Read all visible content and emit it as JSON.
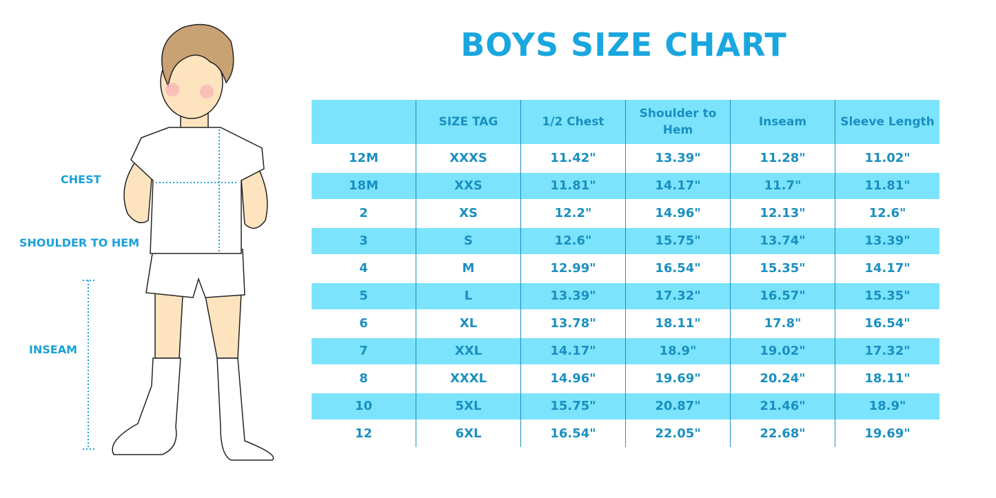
{
  "title": "BOYS SIZE CHART",
  "figure": {
    "labels": {
      "chest": "CHEST",
      "shoulder_to_hem": "SHOULDER TO HEM",
      "inseam": "INSEAM"
    }
  },
  "colors": {
    "accent": "#1aa6de",
    "row_fill": "#7be3fc",
    "text": "#1a8fc0"
  },
  "table": {
    "headers": [
      "",
      "SIZE TAG",
      "1/2 Chest",
      "Shoulder to Hem",
      "Inseam",
      "Sleeve Length"
    ],
    "rows": [
      [
        "12M",
        "XXXS",
        "11.42\"",
        "13.39\"",
        "11.28\"",
        "11.02\""
      ],
      [
        "18M",
        "XXS",
        "11.81\"",
        "14.17\"",
        "11.7\"",
        "11.81\""
      ],
      [
        "2",
        "XS",
        "12.2\"",
        "14.96\"",
        "12.13\"",
        "12.6\""
      ],
      [
        "3",
        "S",
        "12.6\"",
        "15.75\"",
        "13.74\"",
        "13.39\""
      ],
      [
        "4",
        "M",
        "12.99\"",
        "16.54\"",
        "15.35\"",
        "14.17\""
      ],
      [
        "5",
        "L",
        "13.39\"",
        "17.32\"",
        "16.57\"",
        "15.35\""
      ],
      [
        "6",
        "XL",
        "13.78\"",
        "18.11\"",
        "17.8\"",
        "16.54\""
      ],
      [
        "7",
        "XXL",
        "14.17\"",
        "18.9\"",
        "19.02\"",
        "17.32\""
      ],
      [
        "8",
        "XXXL",
        "14.96\"",
        "19.69\"",
        "20.24\"",
        "18.11\""
      ],
      [
        "10",
        "5XL",
        "15.75\"",
        "20.87\"",
        "21.46\"",
        "18.9\""
      ],
      [
        "12",
        "6XL",
        "16.54\"",
        "22.05\"",
        "22.68\"",
        "19.69\""
      ]
    ]
  }
}
